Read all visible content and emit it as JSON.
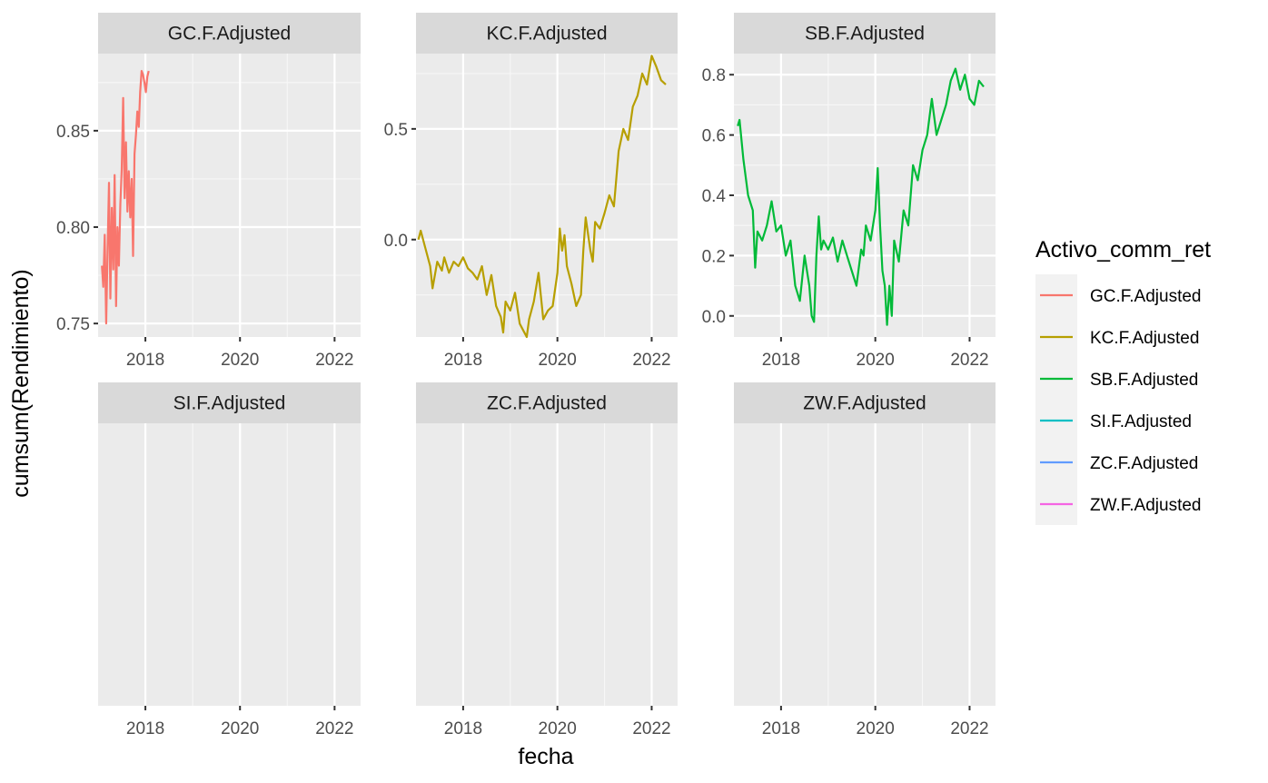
{
  "chart_data": {
    "type": "line",
    "xlabel": "fecha",
    "ylabel": "cumsum(Rendimiento)",
    "xlim": [
      2017.0,
      2022.55
    ],
    "x_ticks": [
      2018,
      2020,
      2022
    ],
    "x_tick_labels": [
      "2018",
      "2020",
      "2022"
    ],
    "facet_scales": "free_y",
    "grid": true,
    "legend": {
      "title": "Activo_comm_ret",
      "position": "right",
      "entries": [
        {
          "label": "GC.F.Adjusted",
          "color": "#F8766D"
        },
        {
          "label": "KC.F.Adjusted",
          "color": "#B79F00"
        },
        {
          "label": "SB.F.Adjusted",
          "color": "#00BA38"
        },
        {
          "label": "SI.F.Adjusted",
          "color": "#00BFC4"
        },
        {
          "label": "ZC.F.Adjusted",
          "color": "#619CFF"
        },
        {
          "label": "ZW.F.Adjusted",
          "color": "#F564E3"
        }
      ]
    },
    "panels": [
      {
        "strip": "GC.F.Adjusted",
        "color": "#F8766D",
        "ylim": [
          0.743,
          0.89
        ],
        "y_ticks": [
          0.75,
          0.8,
          0.85
        ],
        "y_tick_labels": [
          "0.75",
          "0.80",
          "0.85"
        ],
        "x": [
          2017.08,
          2017.11,
          2017.14,
          2017.17,
          2017.2,
          2017.23,
          2017.26,
          2017.29,
          2017.32,
          2017.35,
          2017.38,
          2017.41,
          2017.44,
          2017.47,
          2017.5,
          2017.53,
          2017.56,
          2017.59,
          2017.62,
          2017.65,
          2017.68,
          2017.71,
          2017.74,
          2017.77,
          2017.8,
          2017.83,
          2017.86,
          2017.89,
          2017.92,
          2017.95,
          2017.98,
          2018.01,
          2018.04,
          2018.07
        ],
        "y": [
          0.78,
          0.769,
          0.796,
          0.75,
          0.787,
          0.823,
          0.763,
          0.81,
          0.778,
          0.827,
          0.759,
          0.8,
          0.78,
          0.812,
          0.83,
          0.867,
          0.815,
          0.844,
          0.808,
          0.829,
          0.805,
          0.825,
          0.785,
          0.838,
          0.848,
          0.86,
          0.852,
          0.87,
          0.881,
          0.879,
          0.875,
          0.87,
          0.878,
          0.881
        ]
      },
      {
        "strip": "KC.F.Adjusted",
        "color": "#B79F00",
        "ylim": [
          -0.44,
          0.84
        ],
        "y_ticks": [
          0.0,
          0.5
        ],
        "y_tick_labels": [
          "0.0",
          "0.5"
        ],
        "x": [
          2017.05,
          2017.1,
          2017.2,
          2017.3,
          2017.35,
          2017.45,
          2017.55,
          2017.6,
          2017.7,
          2017.8,
          2017.9,
          2018.0,
          2018.1,
          2018.2,
          2018.3,
          2018.4,
          2018.5,
          2018.6,
          2018.7,
          2018.8,
          2018.85,
          2018.9,
          2019.0,
          2019.1,
          2019.2,
          2019.25,
          2019.35,
          2019.4,
          2019.5,
          2019.6,
          2019.7,
          2019.8,
          2019.9,
          2020.0,
          2020.05,
          2020.1,
          2020.15,
          2020.2,
          2020.3,
          2020.4,
          2020.5,
          2020.55,
          2020.6,
          2020.7,
          2020.75,
          2020.8,
          2020.9,
          2021.0,
          2021.1,
          2021.2,
          2021.3,
          2021.4,
          2021.5,
          2021.6,
          2021.7,
          2021.8,
          2021.9,
          2022.0,
          2022.1,
          2022.2,
          2022.3
        ],
        "y": [
          0.0,
          0.04,
          -0.04,
          -0.12,
          -0.22,
          -0.1,
          -0.14,
          -0.08,
          -0.15,
          -0.1,
          -0.12,
          -0.08,
          -0.13,
          -0.15,
          -0.18,
          -0.12,
          -0.25,
          -0.16,
          -0.3,
          -0.35,
          -0.42,
          -0.28,
          -0.32,
          -0.24,
          -0.38,
          -0.4,
          -0.44,
          -0.36,
          -0.28,
          -0.15,
          -0.36,
          -0.32,
          -0.3,
          -0.15,
          0.05,
          -0.05,
          0.02,
          -0.12,
          -0.2,
          -0.3,
          -0.25,
          -0.05,
          0.1,
          -0.05,
          -0.1,
          0.08,
          0.05,
          0.12,
          0.2,
          0.15,
          0.4,
          0.5,
          0.45,
          0.6,
          0.65,
          0.75,
          0.7,
          0.83,
          0.78,
          0.72,
          0.7
        ]
      },
      {
        "strip": "SB.F.Adjusted",
        "color": "#00BA38",
        "ylim": [
          -0.07,
          0.87
        ],
        "y_ticks": [
          0.0,
          0.2,
          0.4,
          0.6,
          0.8
        ],
        "y_tick_labels": [
          "0.0",
          "0.2",
          "0.4",
          "0.6",
          "0.8"
        ],
        "x": [
          2017.08,
          2017.12,
          2017.2,
          2017.3,
          2017.4,
          2017.45,
          2017.5,
          2017.6,
          2017.7,
          2017.8,
          2017.9,
          2018.0,
          2018.1,
          2018.2,
          2018.3,
          2018.4,
          2018.5,
          2018.6,
          2018.65,
          2018.7,
          2018.75,
          2018.8,
          2018.85,
          2018.9,
          2019.0,
          2019.1,
          2019.2,
          2019.3,
          2019.4,
          2019.5,
          2019.6,
          2019.7,
          2019.75,
          2019.8,
          2019.9,
          2020.0,
          2020.05,
          2020.1,
          2020.15,
          2020.2,
          2020.25,
          2020.3,
          2020.35,
          2020.4,
          2020.5,
          2020.6,
          2020.7,
          2020.8,
          2020.9,
          2021.0,
          2021.1,
          2021.2,
          2021.3,
          2021.4,
          2021.5,
          2021.6,
          2021.7,
          2021.8,
          2021.9,
          2022.0,
          2022.1,
          2022.2,
          2022.3
        ],
        "y": [
          0.63,
          0.65,
          0.52,
          0.4,
          0.35,
          0.16,
          0.28,
          0.25,
          0.3,
          0.38,
          0.28,
          0.3,
          0.2,
          0.25,
          0.1,
          0.05,
          0.2,
          0.1,
          0.0,
          -0.02,
          0.2,
          0.33,
          0.22,
          0.25,
          0.22,
          0.26,
          0.18,
          0.25,
          0.2,
          0.15,
          0.1,
          0.22,
          0.2,
          0.3,
          0.25,
          0.35,
          0.49,
          0.3,
          0.15,
          0.1,
          -0.03,
          0.1,
          0.0,
          0.25,
          0.18,
          0.35,
          0.3,
          0.5,
          0.45,
          0.55,
          0.6,
          0.72,
          0.6,
          0.65,
          0.7,
          0.78,
          0.82,
          0.75,
          0.8,
          0.72,
          0.7,
          0.78,
          0.76
        ]
      },
      {
        "strip": "SI.F.Adjusted",
        "color": "#00BFC4",
        "x": [],
        "y": []
      },
      {
        "strip": "ZC.F.Adjusted",
        "color": "#619CFF",
        "x": [],
        "y": []
      },
      {
        "strip": "ZW.F.Adjusted",
        "color": "#F564E3",
        "x": [],
        "y": []
      }
    ]
  }
}
